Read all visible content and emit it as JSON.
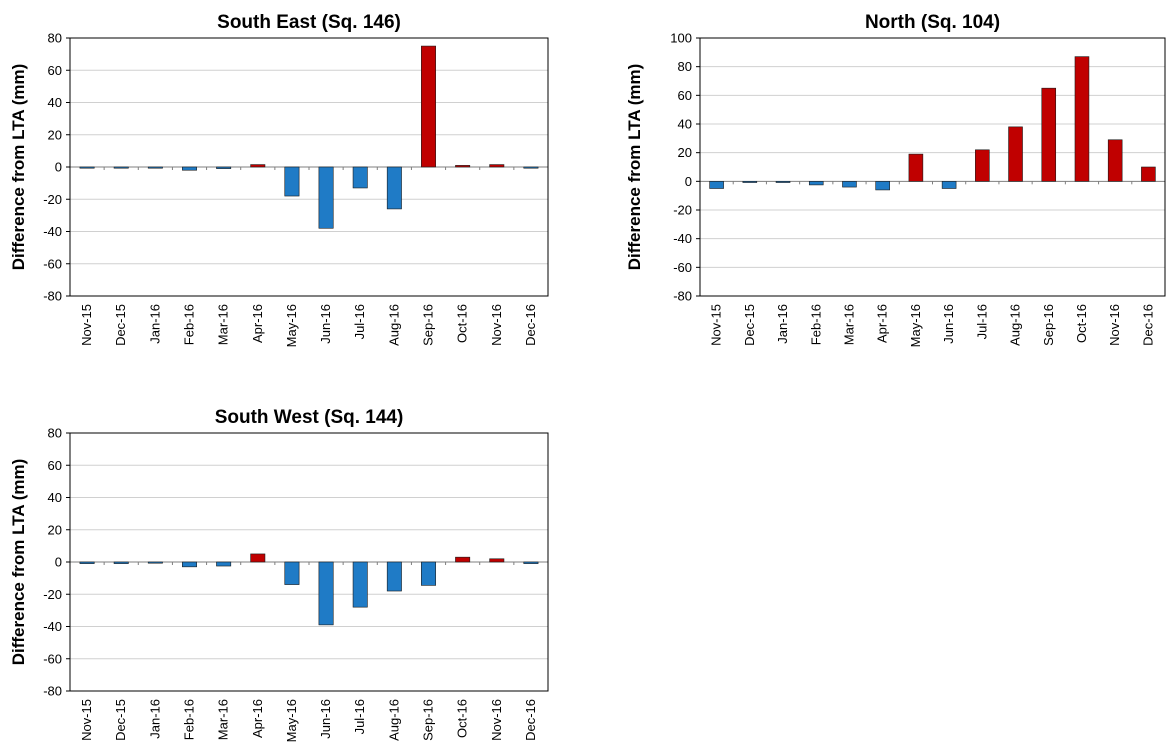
{
  "chart_data": [
    {
      "type": "bar",
      "title": "South East (Sq. 146)",
      "ylabel": "Difference from LTA (mm)",
      "xlabel": "",
      "ylim": [
        -80,
        80
      ],
      "yticks": [
        80,
        60,
        40,
        20,
        0,
        -20,
        -40,
        -60,
        -80
      ],
      "grid": true,
      "categories": [
        "Nov-15",
        "Dec-15",
        "Jan-16",
        "Feb-16",
        "Mar-16",
        "Apr-16",
        "May-16",
        "Jun-16",
        "Jul-16",
        "Aug-16",
        "Sep-16",
        "Oct-16",
        "Nov-16",
        "Dec-16"
      ],
      "values": [
        -0.5,
        -0.5,
        -0.5,
        -2,
        -1,
        1.5,
        -18,
        -38,
        -13,
        -26,
        75,
        1,
        1.5,
        -0.5
      ],
      "colors": {
        "positive": "#c00000",
        "negative": "#1f7bc6"
      }
    },
    {
      "type": "bar",
      "title": "North (Sq. 104)",
      "ylabel": "Difference from LTA (mm)",
      "xlabel": "",
      "ylim": [
        -80,
        100
      ],
      "yticks": [
        100,
        80,
        60,
        40,
        20,
        0,
        -20,
        -40,
        -60,
        -80
      ],
      "grid": true,
      "categories": [
        "Nov-15",
        "Dec-15",
        "Jan-16",
        "Feb-16",
        "Mar-16",
        "Apr-16",
        "May-16",
        "Jun-16",
        "Jul-16",
        "Aug-16",
        "Sep-16",
        "Oct-16",
        "Nov-16",
        "Dec-16"
      ],
      "values": [
        -5,
        -0.5,
        -0.5,
        -2.5,
        -4,
        -6,
        19,
        -5,
        22,
        38,
        65,
        87,
        29,
        10
      ],
      "colors": {
        "positive": "#c00000",
        "negative": "#1f7bc6"
      }
    },
    {
      "type": "bar",
      "title": "South West (Sq. 144)",
      "ylabel": "Difference from LTA (mm)",
      "xlabel": "",
      "ylim": [
        -80,
        80
      ],
      "yticks": [
        80,
        60,
        40,
        20,
        0,
        -20,
        -40,
        -60,
        -80
      ],
      "grid": true,
      "categories": [
        "Nov-15",
        "Dec-15",
        "Jan-16",
        "Feb-16",
        "Mar-16",
        "Apr-16",
        "May-16",
        "Jun-16",
        "Jul-16",
        "Aug-16",
        "Sep-16",
        "Oct-16",
        "Nov-16",
        "Dec-16"
      ],
      "values": [
        -1,
        -1,
        -0.5,
        -3,
        -2.5,
        5,
        -14,
        -39,
        -28,
        -18,
        -14.5,
        3,
        2,
        -1
      ],
      "colors": {
        "positive": "#c00000",
        "negative": "#1f7bc6"
      }
    }
  ]
}
